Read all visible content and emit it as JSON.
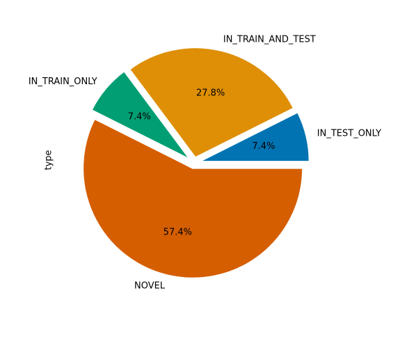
{
  "chart_data": {
    "type": "pie",
    "ylabel": "type",
    "slices": [
      {
        "label": "IN_TEST_ONLY",
        "value": 7.4,
        "pct_label": "7.4%",
        "color": "#0173b2"
      },
      {
        "label": "IN_TRAIN_AND_TEST",
        "value": 27.8,
        "pct_label": "27.8%",
        "color": "#de8f05"
      },
      {
        "label": "IN_TRAIN_ONLY",
        "value": 7.4,
        "pct_label": "7.4%",
        "color": "#029e73"
      },
      {
        "label": "NOVEL",
        "value": 57.4,
        "pct_label": "57.4%",
        "color": "#d55e00"
      }
    ],
    "explode": [
      0.05,
      0.05,
      0.05,
      0.05
    ],
    "start_angle_deg": 0,
    "direction": "counterclockwise",
    "wedge_edge_color": "#ffffff"
  }
}
